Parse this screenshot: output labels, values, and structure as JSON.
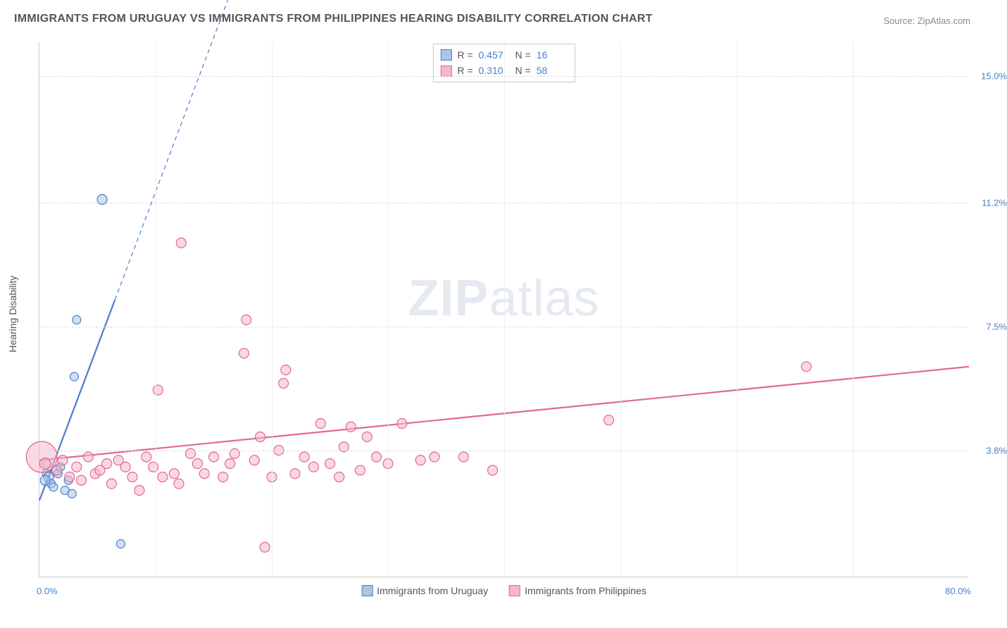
{
  "title": "IMMIGRANTS FROM URUGUAY VS IMMIGRANTS FROM PHILIPPINES HEARING DISABILITY CORRELATION CHART",
  "source": "Source: ZipAtlas.com",
  "watermark": {
    "zip": "ZIP",
    "atlas": "atlas"
  },
  "yAxis": {
    "title": "Hearing Disability",
    "ticks": [
      {
        "value": 3.8,
        "label": "3.8%"
      },
      {
        "value": 7.5,
        "label": "7.5%"
      },
      {
        "value": 11.2,
        "label": "11.2%"
      },
      {
        "value": 15.0,
        "label": "15.0%"
      }
    ],
    "min": 0.0,
    "max": 16.0
  },
  "xAxis": {
    "min": 0.0,
    "max": 80.0,
    "leftLabel": "0.0%",
    "rightLabel": "80.0%",
    "vgrids": [
      10,
      20,
      30,
      40,
      50,
      60,
      70
    ]
  },
  "series": [
    {
      "id": "uruguay",
      "label": "Immigrants from Uruguay",
      "color": "#4a7ec9",
      "fill": "#aac5e8",
      "fillOpacity": 0.55,
      "R": "0.457",
      "N": "16",
      "regression": {
        "x1": 0,
        "y1": 2.3,
        "x2": 6.5,
        "y2": 8.3,
        "dash_x2": 22,
        "dash_y2": 22.6
      },
      "points": [
        {
          "x": 0.6,
          "y": 3.1,
          "r": 6
        },
        {
          "x": 0.6,
          "y": 3.4,
          "r": 6
        },
        {
          "x": 0.8,
          "y": 3.0,
          "r": 7
        },
        {
          "x": 1.0,
          "y": 2.8,
          "r": 6
        },
        {
          "x": 1.4,
          "y": 3.2,
          "r": 6
        },
        {
          "x": 1.6,
          "y": 3.1,
          "r": 6
        },
        {
          "x": 1.2,
          "y": 2.7,
          "r": 6
        },
        {
          "x": 0.5,
          "y": 2.9,
          "r": 7
        },
        {
          "x": 1.8,
          "y": 3.3,
          "r": 6
        },
        {
          "x": 2.2,
          "y": 2.6,
          "r": 6
        },
        {
          "x": 2.5,
          "y": 2.9,
          "r": 6
        },
        {
          "x": 2.8,
          "y": 2.5,
          "r": 6
        },
        {
          "x": 3.0,
          "y": 6.0,
          "r": 6
        },
        {
          "x": 3.2,
          "y": 7.7,
          "r": 6
        },
        {
          "x": 5.4,
          "y": 11.3,
          "r": 7
        },
        {
          "x": 7.0,
          "y": 1.0,
          "r": 6
        }
      ]
    },
    {
      "id": "philippines",
      "label": "Immigrants from Philippines",
      "color": "#e26a8b",
      "fill": "#f5b8c9",
      "fillOpacity": 0.55,
      "R": "0.310",
      "N": "58",
      "regression": {
        "x1": 0,
        "y1": 3.5,
        "x2": 80,
        "y2": 6.3
      },
      "points": [
        {
          "x": 0.2,
          "y": 3.6,
          "r": 22
        },
        {
          "x": 0.5,
          "y": 3.4,
          "r": 8
        },
        {
          "x": 1.5,
          "y": 3.2,
          "r": 7
        },
        {
          "x": 2.0,
          "y": 3.5,
          "r": 7
        },
        {
          "x": 2.6,
          "y": 3.0,
          "r": 7
        },
        {
          "x": 3.2,
          "y": 3.3,
          "r": 7
        },
        {
          "x": 3.6,
          "y": 2.9,
          "r": 7
        },
        {
          "x": 4.2,
          "y": 3.6,
          "r": 7
        },
        {
          "x": 4.8,
          "y": 3.1,
          "r": 7
        },
        {
          "x": 5.2,
          "y": 3.2,
          "r": 7
        },
        {
          "x": 5.8,
          "y": 3.4,
          "r": 7
        },
        {
          "x": 6.2,
          "y": 2.8,
          "r": 7
        },
        {
          "x": 6.8,
          "y": 3.5,
          "r": 7
        },
        {
          "x": 7.4,
          "y": 3.3,
          "r": 7
        },
        {
          "x": 8.0,
          "y": 3.0,
          "r": 7
        },
        {
          "x": 8.6,
          "y": 2.6,
          "r": 7
        },
        {
          "x": 9.2,
          "y": 3.6,
          "r": 7
        },
        {
          "x": 9.8,
          "y": 3.3,
          "r": 7
        },
        {
          "x": 10.2,
          "y": 5.6,
          "r": 7
        },
        {
          "x": 10.6,
          "y": 3.0,
          "r": 7
        },
        {
          "x": 11.6,
          "y": 3.1,
          "r": 7
        },
        {
          "x": 12.0,
          "y": 2.8,
          "r": 7
        },
        {
          "x": 12.2,
          "y": 10.0,
          "r": 7
        },
        {
          "x": 13.0,
          "y": 3.7,
          "r": 7
        },
        {
          "x": 13.6,
          "y": 3.4,
          "r": 7
        },
        {
          "x": 14.2,
          "y": 3.1,
          "r": 7
        },
        {
          "x": 15.0,
          "y": 3.6,
          "r": 7
        },
        {
          "x": 15.8,
          "y": 3.0,
          "r": 7
        },
        {
          "x": 16.4,
          "y": 3.4,
          "r": 7
        },
        {
          "x": 16.8,
          "y": 3.7,
          "r": 7
        },
        {
          "x": 17.6,
          "y": 6.7,
          "r": 7
        },
        {
          "x": 17.8,
          "y": 7.7,
          "r": 7
        },
        {
          "x": 18.5,
          "y": 3.5,
          "r": 7
        },
        {
          "x": 19.0,
          "y": 4.2,
          "r": 7
        },
        {
          "x": 19.4,
          "y": 0.9,
          "r": 7
        },
        {
          "x": 20.0,
          "y": 3.0,
          "r": 7
        },
        {
          "x": 20.6,
          "y": 3.8,
          "r": 7
        },
        {
          "x": 21.0,
          "y": 5.8,
          "r": 7
        },
        {
          "x": 21.2,
          "y": 6.2,
          "r": 7
        },
        {
          "x": 22.0,
          "y": 3.1,
          "r": 7
        },
        {
          "x": 22.8,
          "y": 3.6,
          "r": 7
        },
        {
          "x": 23.6,
          "y": 3.3,
          "r": 7
        },
        {
          "x": 24.2,
          "y": 4.6,
          "r": 7
        },
        {
          "x": 25.0,
          "y": 3.4,
          "r": 7
        },
        {
          "x": 25.8,
          "y": 3.0,
          "r": 7
        },
        {
          "x": 26.2,
          "y": 3.9,
          "r": 7
        },
        {
          "x": 26.8,
          "y": 4.5,
          "r": 7
        },
        {
          "x": 27.6,
          "y": 3.2,
          "r": 7
        },
        {
          "x": 28.2,
          "y": 4.2,
          "r": 7
        },
        {
          "x": 29.0,
          "y": 3.6,
          "r": 7
        },
        {
          "x": 30.0,
          "y": 3.4,
          "r": 7
        },
        {
          "x": 31.2,
          "y": 4.6,
          "r": 7
        },
        {
          "x": 32.8,
          "y": 3.5,
          "r": 7
        },
        {
          "x": 34.0,
          "y": 3.6,
          "r": 7
        },
        {
          "x": 36.5,
          "y": 3.6,
          "r": 7
        },
        {
          "x": 39.0,
          "y": 3.2,
          "r": 7
        },
        {
          "x": 49.0,
          "y": 4.7,
          "r": 7
        },
        {
          "x": 66.0,
          "y": 6.3,
          "r": 7
        }
      ]
    }
  ],
  "statsLabels": {
    "R": "R =",
    "N": "N ="
  }
}
